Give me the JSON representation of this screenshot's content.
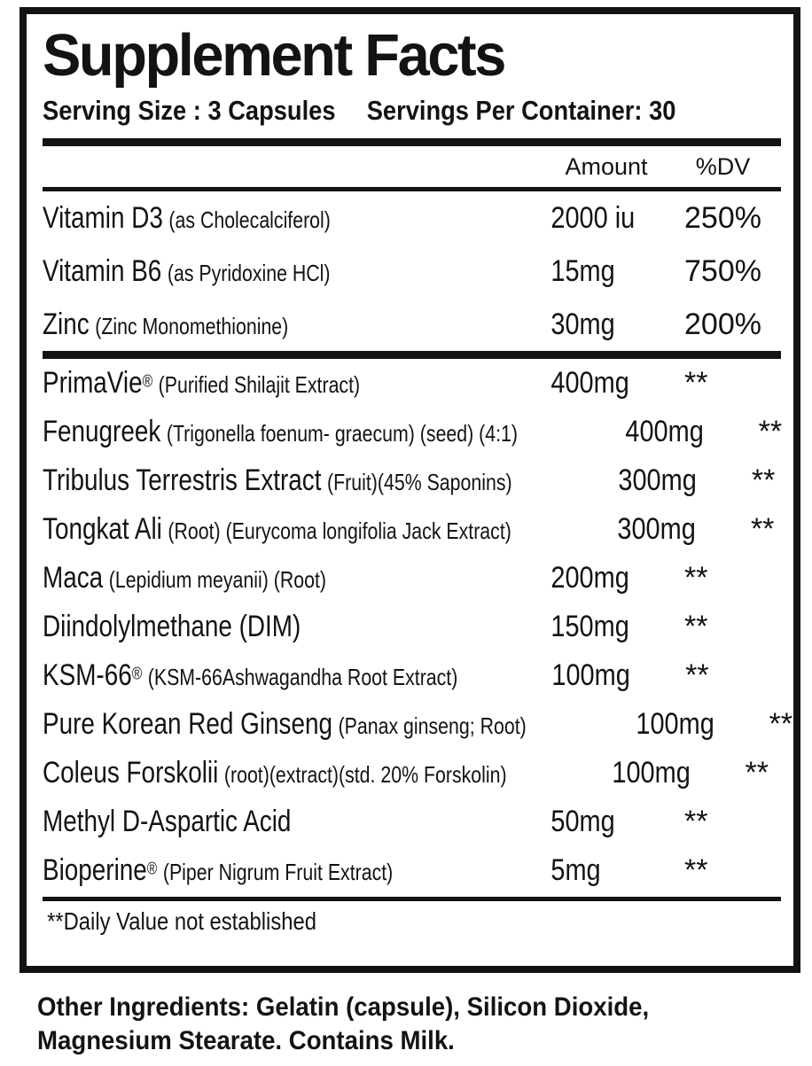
{
  "panel": {
    "title": "Supplement Facts",
    "serving_size": "Serving Size : 3 Capsules",
    "servings_per_container": "Servings Per Container: 30",
    "columns": {
      "amount": "Amount",
      "dv": "%DV"
    },
    "vitamin_rows": [
      {
        "name": "Vitamin D3",
        "detail": "(as Cholecalciferol)",
        "amount": "2000 iu",
        "dv": "250%"
      },
      {
        "name": "Vitamin B6",
        "detail": "(as Pyridoxine HCl)",
        "amount": "15mg",
        "dv": "750%"
      },
      {
        "name": "Zinc",
        "detail": "(Zinc Monomethionine)",
        "amount": "30mg",
        "dv": "200%"
      }
    ],
    "ingredient_rows": [
      {
        "name": "PrimaVie",
        "reg": "®",
        "detail": "(Purified Shilajit Extract)",
        "amount": "400mg",
        "dv": "**"
      },
      {
        "name": "Fenugreek",
        "detail": "(Trigonella foenum- graecum) (seed) (4:1)",
        "amount": "400mg",
        "dv": "**"
      },
      {
        "name": "Tribulus Terrestris Extract",
        "detail": "(Fruit)(45% Saponins)",
        "amount": "300mg",
        "dv": "**"
      },
      {
        "name": "Tongkat Ali",
        "detail": "(Root) (Eurycoma longifolia Jack Extract)",
        "amount": "300mg",
        "dv": "**"
      },
      {
        "name": "Maca",
        "detail": "(Lepidium meyanii) (Root)",
        "amount": "200mg",
        "dv": "**"
      },
      {
        "name": "Diindolylmethane (DIM)",
        "amount": "150mg",
        "dv": "**"
      },
      {
        "name": "KSM-66",
        "reg": "®",
        "detail": "(KSM-66Ashwagandha Root Extract)",
        "amount": "100mg",
        "dv": "**"
      },
      {
        "name": "Pure Korean Red Ginseng",
        "detail": "(Panax ginseng; Root)",
        "amount": "100mg",
        "dv": "**"
      },
      {
        "name": "Coleus Forskolii",
        "detail": "(root)(extract)(std. 20% Forskolin)",
        "amount": "100mg",
        "dv": "**"
      },
      {
        "name": "Methyl D-Aspartic Acid",
        "amount": "50mg",
        "dv": "**"
      },
      {
        "name": "Bioperine",
        "reg": "®",
        "detail": "(Piper Nigrum Fruit Extract)",
        "amount": "5mg",
        "dv": "**"
      }
    ],
    "footnote": "**Daily Value not established",
    "other_ingredients": "Other Ingredients: Gelatin (capsule), Silicon Dioxide,\nMagnesium Stearate. Contains Milk.",
    "colors": {
      "ink": "#131313",
      "background": "#ffffff"
    }
  }
}
